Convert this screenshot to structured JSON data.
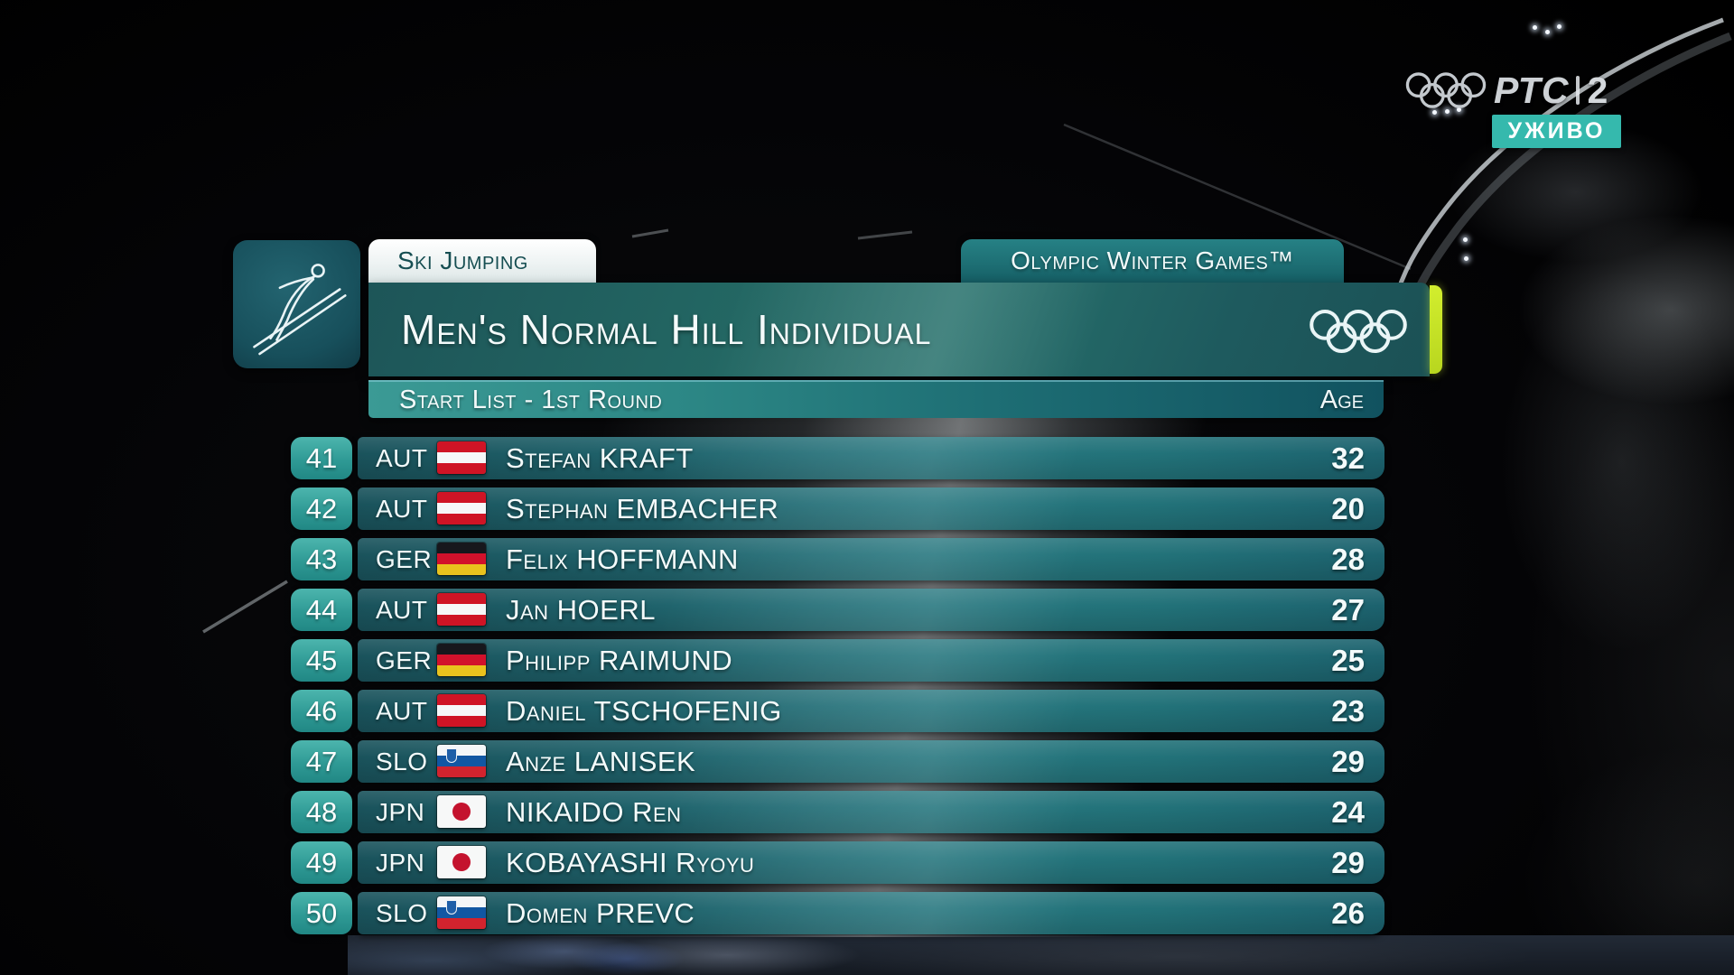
{
  "broadcaster": {
    "channel": "РТС",
    "channel_number": "2",
    "live_badge": "УЖИВО",
    "badge_color": "#35b9ad"
  },
  "header": {
    "sport_tab": "Ski Jumping",
    "event_tab": "Olympic Winter Games™",
    "title": "Men's Normal Hill Individual",
    "subtitle": "Start List - 1st Round",
    "age_label": "Age",
    "accent_color": "#d2ee2e",
    "brand_teal": "#1d626c",
    "bib_teal": "#38a39c"
  },
  "start_list": {
    "rows": [
      {
        "bib": "41",
        "noc": "AUT",
        "flag": "aut",
        "name": "Stefan KRAFT",
        "age": "32"
      },
      {
        "bib": "42",
        "noc": "AUT",
        "flag": "aut",
        "name": "Stephan EMBACHER",
        "age": "20"
      },
      {
        "bib": "43",
        "noc": "GER",
        "flag": "ger",
        "name": "Felix HOFFMANN",
        "age": "28"
      },
      {
        "bib": "44",
        "noc": "AUT",
        "flag": "aut",
        "name": "Jan HOERL",
        "age": "27"
      },
      {
        "bib": "45",
        "noc": "GER",
        "flag": "ger",
        "name": "Philipp RAIMUND",
        "age": "25"
      },
      {
        "bib": "46",
        "noc": "AUT",
        "flag": "aut",
        "name": "Daniel TSCHOFENIG",
        "age": "23"
      },
      {
        "bib": "47",
        "noc": "SLO",
        "flag": "slo",
        "name": "Anze LANISEK",
        "age": "29"
      },
      {
        "bib": "48",
        "noc": "JPN",
        "flag": "jpn",
        "name": "NIKAIDO Ren",
        "age": "24"
      },
      {
        "bib": "49",
        "noc": "JPN",
        "flag": "jpn",
        "name": "KOBAYASHI Ryoyu",
        "age": "29"
      },
      {
        "bib": "50",
        "noc": "SLO",
        "flag": "slo",
        "name": "Domen PREVC",
        "age": "26"
      }
    ]
  }
}
